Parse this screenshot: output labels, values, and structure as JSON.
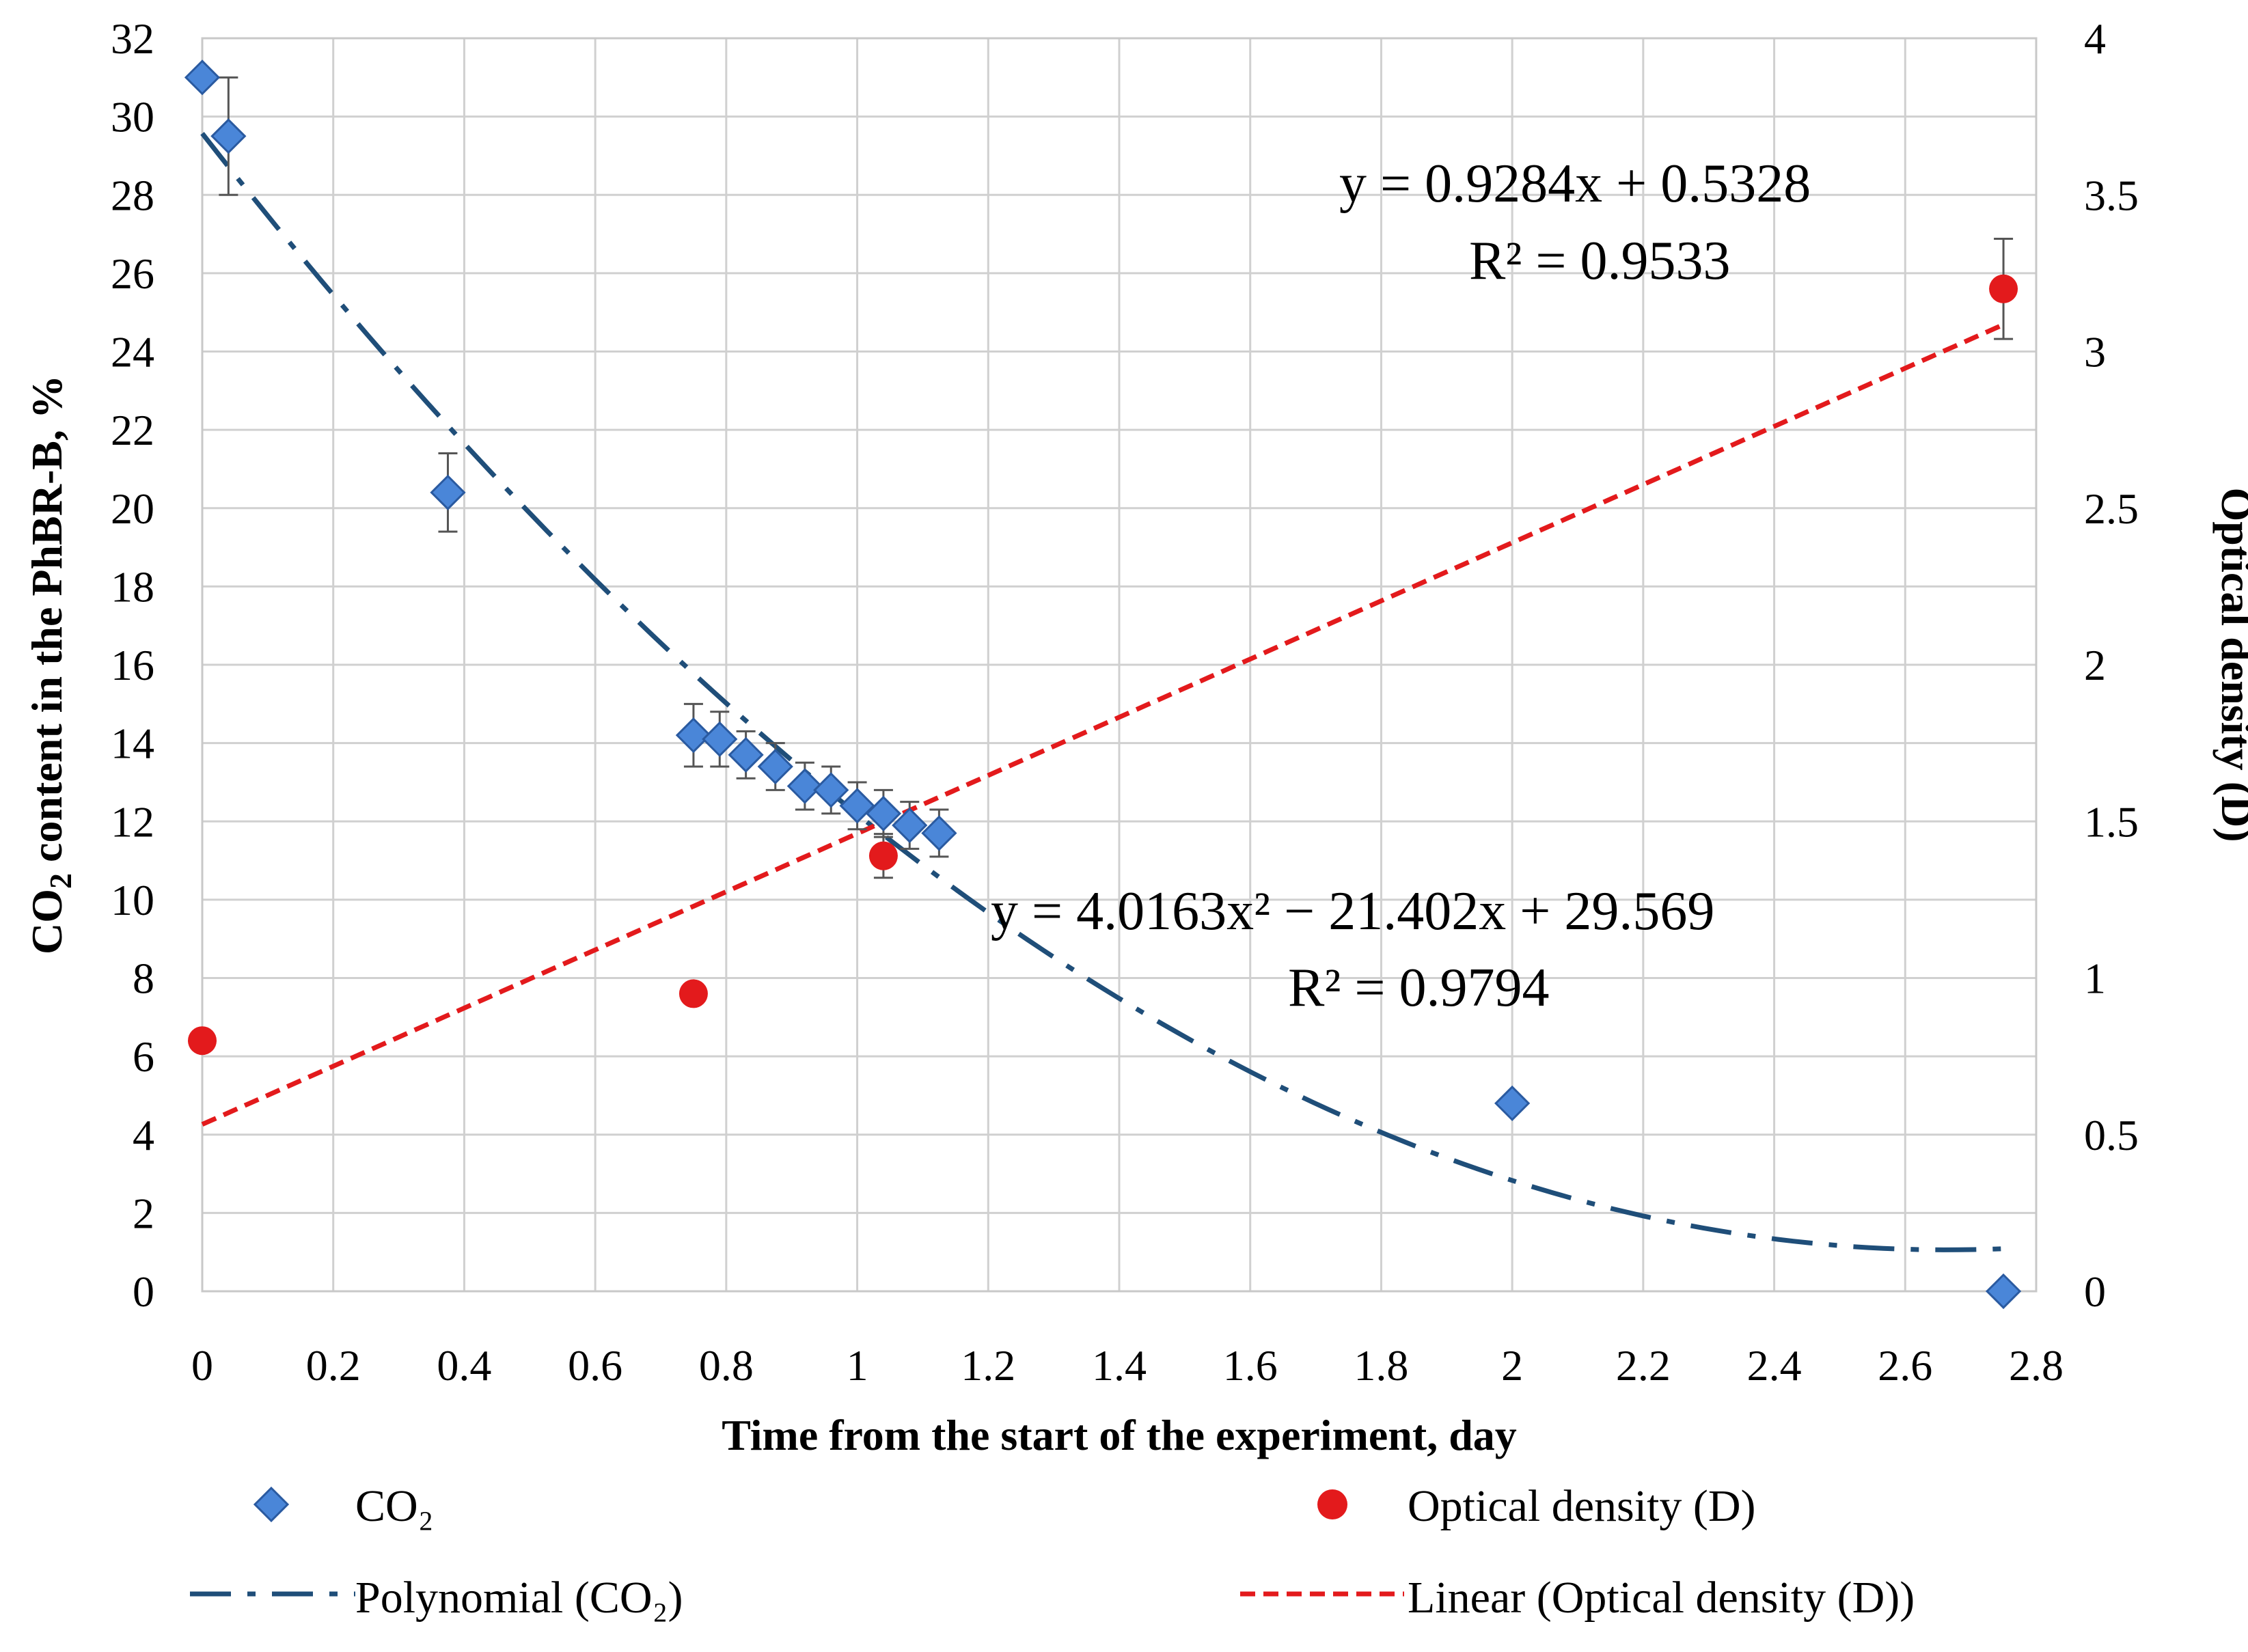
{
  "chart_data": {
    "type": "scatter",
    "title": "",
    "xlabel": "Time from the start of the experiment, day",
    "ylabel_left_main": "CO",
    "ylabel_left_sub": "2",
    "ylabel_left_rest": " content in the PhBR-B, %",
    "ylabel_right": "Optical density (D)",
    "xlim": [
      0,
      2.8
    ],
    "ylim_left": [
      0,
      32
    ],
    "ylim_right": [
      0,
      4
    ],
    "x_ticks": [
      "0",
      "0.2",
      "0.4",
      "0.6",
      "0.8",
      "1",
      "1.2",
      "1.4",
      "1.6",
      "1.8",
      "2",
      "2.2",
      "2.4",
      "2.6",
      "2.8"
    ],
    "y_left_ticks": [
      "0",
      "2",
      "4",
      "6",
      "8",
      "10",
      "12",
      "14",
      "16",
      "18",
      "20",
      "22",
      "24",
      "26",
      "28",
      "30",
      "32"
    ],
    "y_right_ticks": [
      "0",
      "0.5",
      "1",
      "1.5",
      "2",
      "2.5",
      "3",
      "3.5",
      "4"
    ],
    "grid": true,
    "series": [
      {
        "name": "CO₂",
        "axis": "left",
        "marker": "diamond",
        "color": "#4a86d8",
        "x": [
          0,
          0.04,
          0.375,
          0.75,
          0.79,
          0.83,
          0.875,
          0.92,
          0.96,
          1.0,
          1.04,
          1.08,
          1.125,
          2.0,
          2.75
        ],
        "y": [
          31.0,
          29.5,
          20.4,
          14.2,
          14.1,
          13.7,
          13.4,
          12.9,
          12.8,
          12.4,
          12.2,
          11.9,
          11.7,
          4.8,
          0.0
        ],
        "err": [
          0.0,
          1.5,
          1.0,
          0.8,
          0.7,
          0.6,
          0.6,
          0.6,
          0.6,
          0.6,
          0.6,
          0.6,
          0.6,
          0.0,
          0.0
        ]
      },
      {
        "name": "Optical density (D)",
        "axis": "right",
        "marker": "circle",
        "color": "#e31a1c",
        "x": [
          0,
          0.75,
          1.04,
          2.75
        ],
        "y": [
          0.8,
          0.95,
          1.39,
          3.2
        ],
        "err": [
          0.0,
          0.0,
          0.07,
          0.16
        ]
      }
    ],
    "trendlines": [
      {
        "name": "Polynomial (CO₂)",
        "axis": "left",
        "kind": "polynomial",
        "coefficients": [
          29.569,
          -21.402,
          4.0163
        ],
        "x_range": [
          0,
          2.75
        ],
        "color": "#1f4e79",
        "equation": "y = 4.0163x² − 21.402x + 29.569",
        "r2": "R² = 0.9794"
      },
      {
        "name": "Linear (Optical density (D))",
        "axis": "right",
        "kind": "linear",
        "coefficients": [
          0.5328,
          0.9284
        ],
        "x_range": [
          0,
          2.75
        ],
        "color": "#e31a1c",
        "equation": "y = 0.9284x + 0.5328",
        "r2": "R² = 0.9533"
      }
    ],
    "legend": {
      "placement": "bottom",
      "items": [
        "CO₂",
        "Optical density (D)",
        "Polynomial (CO₂)",
        "Linear (Optical density (D))"
      ]
    }
  }
}
